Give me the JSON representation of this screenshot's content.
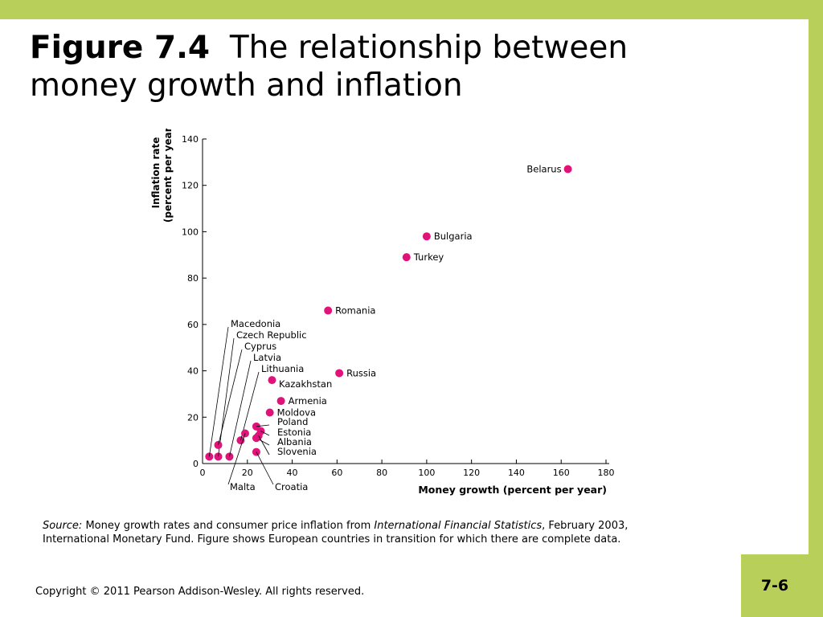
{
  "slide": {
    "title_bold": "Figure 7.4",
    "title_rest": "The relationship between money growth and inflation",
    "source_label": "Source:",
    "source_text_1": "Money growth rates and consumer price inflation from",
    "source_italic": "International Financial Statistics",
    "source_text_2": ", February 2003, International Monetary Fund. Figure shows European countries in transition for which there are complete data.",
    "copyright": "Copyright © 2011 Pearson Addison-Wesley. All rights reserved.",
    "page_number": "7-6",
    "accent_color": "#b8cf5a",
    "point_color": "#e0137a"
  },
  "chart_data": {
    "type": "scatter",
    "xlabel": "Money growth (percent per year)",
    "ylabel_line1": "Inflation rate",
    "ylabel_line2": "(percent per year)",
    "xlim": [
      0,
      180
    ],
    "ylim": [
      0,
      140
    ],
    "xticks": [
      0,
      20,
      40,
      60,
      80,
      100,
      120,
      140,
      160,
      180
    ],
    "yticks": [
      0,
      20,
      40,
      60,
      80,
      100,
      120,
      140
    ],
    "grid": false,
    "points": [
      {
        "label": "Belarus",
        "x": 163,
        "y": 127
      },
      {
        "label": "Bulgaria",
        "x": 100,
        "y": 98
      },
      {
        "label": "Turkey",
        "x": 91,
        "y": 89
      },
      {
        "label": "Romania",
        "x": 56,
        "y": 66
      },
      {
        "label": "Russia",
        "x": 61,
        "y": 39
      },
      {
        "label": "Kazakhstan",
        "x": 31,
        "y": 36
      },
      {
        "label": "Armenia",
        "x": 35,
        "y": 27
      },
      {
        "label": "Moldova",
        "x": 30,
        "y": 22
      },
      {
        "label": "Poland",
        "x": 24,
        "y": 16
      },
      {
        "label": "Estonia",
        "x": 26,
        "y": 14
      },
      {
        "label": "Albania",
        "x": 24,
        "y": 11
      },
      {
        "label": "Slovenia",
        "x": 25,
        "y": 12
      },
      {
        "label": "Croatia",
        "x": 24,
        "y": 5
      },
      {
        "label": "Macedonia",
        "x": 3,
        "y": 3
      },
      {
        "label": "Czech Republic",
        "x": 7,
        "y": 3
      },
      {
        "label": "Cyprus",
        "x": 7,
        "y": 8
      },
      {
        "label": "Latvia",
        "x": 12,
        "y": 3
      },
      {
        "label": "Lithuania",
        "x": 17,
        "y": 10
      },
      {
        "label": "Malta",
        "x": 19,
        "y": 13
      }
    ]
  }
}
